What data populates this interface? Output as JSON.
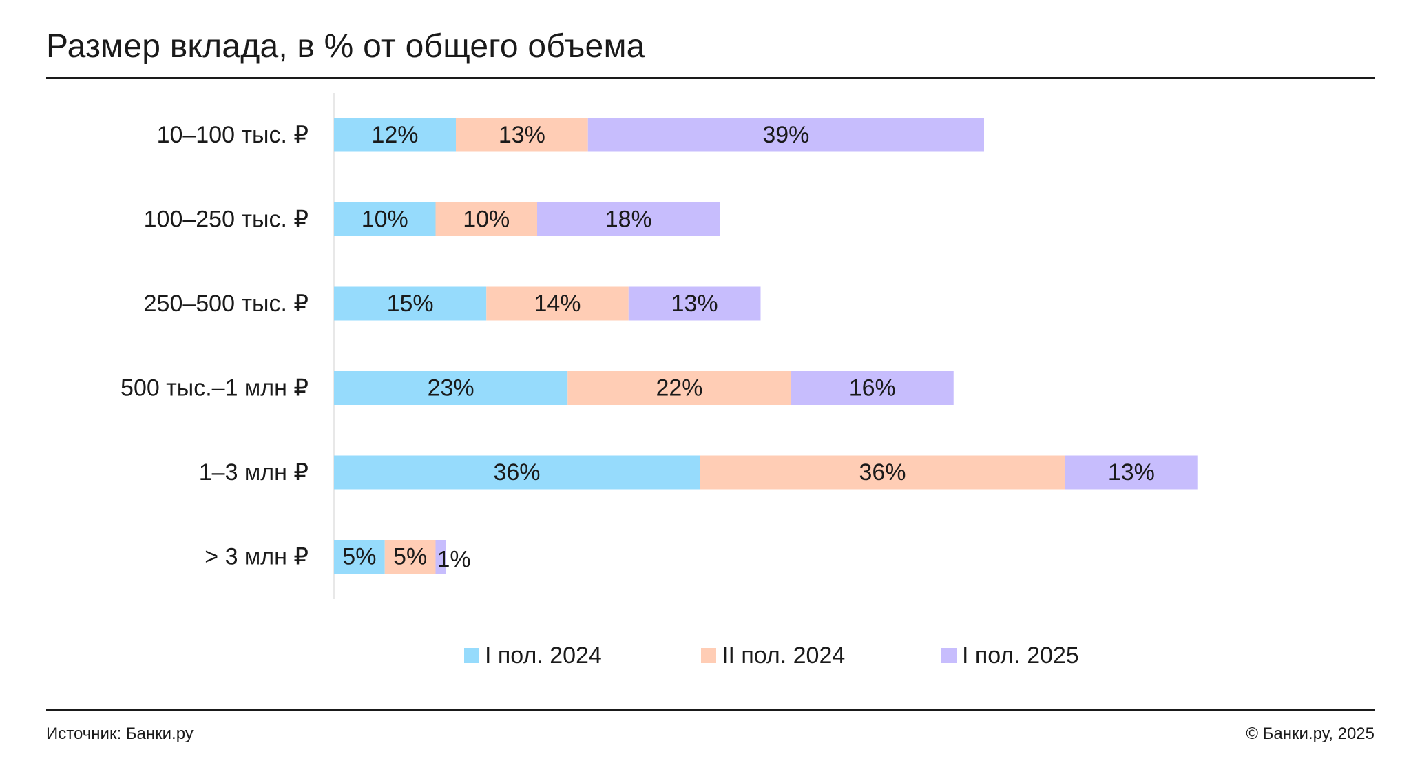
{
  "header": {
    "title": "Размер вклада, в % от общего объема"
  },
  "footer": {
    "source": "Источник: Банки.ру",
    "copyright": "© Банки.ру, 2025"
  },
  "colors": {
    "series_1": "#96dbfc",
    "series_2": "#ffcdb5",
    "series_3": "#c7bdfd",
    "text": "#1a1a1a",
    "axis": "#e8e8e8"
  },
  "chart_data": {
    "type": "bar",
    "orientation": "horizontal",
    "stacked": true,
    "categories": [
      "10–100 тыс. ₽",
      "100–250 тыс. ₽",
      "250–500 тыс. ₽",
      "500 тыс.–1 млн ₽",
      "1–3 млн ₽",
      "> 3 млн ₽"
    ],
    "series": [
      {
        "name": "I пол. 2024",
        "values": [
          12,
          10,
          15,
          23,
          36,
          5
        ]
      },
      {
        "name": "II пол. 2024",
        "values": [
          13,
          10,
          14,
          22,
          36,
          5
        ]
      },
      {
        "name": "I пол. 2025",
        "values": [
          39,
          18,
          13,
          16,
          13,
          1
        ]
      }
    ],
    "value_suffix": "%",
    "legend": "bottom",
    "grid": false
  }
}
